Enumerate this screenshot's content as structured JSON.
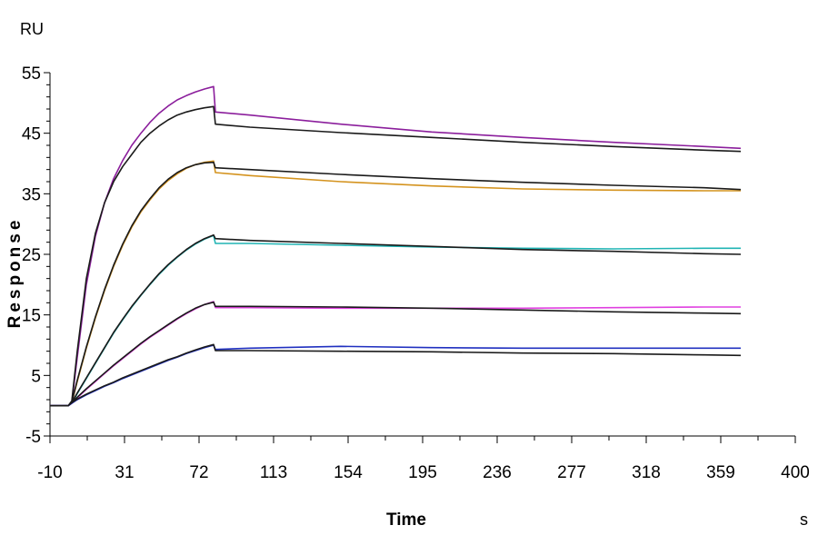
{
  "chart_data": {
    "type": "line",
    "xlabel": "Time",
    "ylabel": "Response",
    "x_unit": "s",
    "y_unit": "RU",
    "xlim": [
      -10,
      400
    ],
    "ylim": [
      -5,
      55
    ],
    "x_ticks": [
      -10,
      31,
      72,
      113,
      154,
      195,
      236,
      277,
      318,
      359,
      400
    ],
    "y_ticks": [
      -5,
      5,
      15,
      25,
      35,
      45,
      55
    ],
    "grid": false,
    "colors": {
      "fit": "#1a1a1a",
      "axis": "#000000"
    },
    "series": [
      {
        "color": "#8B1E9C",
        "points": [
          [
            -10,
            0
          ],
          [
            0,
            0
          ],
          [
            2,
            0.5
          ],
          [
            5,
            8
          ],
          [
            10,
            20
          ],
          [
            15,
            28
          ],
          [
            20,
            33.5
          ],
          [
            25,
            37.5
          ],
          [
            30,
            40.5
          ],
          [
            35,
            43
          ],
          [
            40,
            45
          ],
          [
            45,
            46.8
          ],
          [
            50,
            48.3
          ],
          [
            55,
            49.5
          ],
          [
            60,
            50.5
          ],
          [
            65,
            51.2
          ],
          [
            70,
            51.8
          ],
          [
            75,
            52.3
          ],
          [
            80,
            52.7
          ],
          [
            81,
            48.5
          ],
          [
            100,
            48
          ],
          [
            150,
            46.5
          ],
          [
            200,
            45.2
          ],
          [
            250,
            44.3
          ],
          [
            300,
            43.5
          ],
          [
            350,
            42.8
          ],
          [
            370,
            42.5
          ]
        ]
      },
      {
        "color": "#1a1a1a",
        "points": [
          [
            -10,
            0
          ],
          [
            0,
            0
          ],
          [
            2,
            0.8
          ],
          [
            5,
            9
          ],
          [
            10,
            21
          ],
          [
            15,
            28.5
          ],
          [
            20,
            33.5
          ],
          [
            25,
            37
          ],
          [
            30,
            39.5
          ],
          [
            35,
            41.5
          ],
          [
            40,
            43.5
          ],
          [
            45,
            45
          ],
          [
            50,
            46.2
          ],
          [
            55,
            47.2
          ],
          [
            60,
            48
          ],
          [
            65,
            48.5
          ],
          [
            70,
            48.9
          ],
          [
            75,
            49.2
          ],
          [
            80,
            49.4
          ],
          [
            81,
            46.5
          ],
          [
            100,
            46
          ],
          [
            150,
            45.1
          ],
          [
            200,
            44.3
          ],
          [
            250,
            43.5
          ],
          [
            300,
            42.8
          ],
          [
            350,
            42.2
          ],
          [
            370,
            42
          ]
        ]
      },
      {
        "color": "#D4931E",
        "points": [
          [
            -10,
            0
          ],
          [
            0,
            0
          ],
          [
            2,
            0.5
          ],
          [
            5,
            4
          ],
          [
            10,
            9.5
          ],
          [
            15,
            14.5
          ],
          [
            20,
            19
          ],
          [
            25,
            23
          ],
          [
            30,
            26.5
          ],
          [
            35,
            29.5
          ],
          [
            40,
            32
          ],
          [
            45,
            34
          ],
          [
            50,
            35.8
          ],
          [
            55,
            37.2
          ],
          [
            60,
            38.3
          ],
          [
            65,
            39.2
          ],
          [
            70,
            39.8
          ],
          [
            75,
            40.2
          ],
          [
            80,
            40.4
          ],
          [
            81,
            38.5
          ],
          [
            100,
            38
          ],
          [
            150,
            37
          ],
          [
            200,
            36.3
          ],
          [
            250,
            35.8
          ],
          [
            300,
            35.6
          ],
          [
            350,
            35.5
          ],
          [
            370,
            35.5
          ]
        ]
      },
      {
        "color": "#1a1a1a",
        "points": [
          [
            -10,
            0
          ],
          [
            0,
            0
          ],
          [
            2,
            0.6
          ],
          [
            5,
            4.2
          ],
          [
            10,
            9.7
          ],
          [
            15,
            14.7
          ],
          [
            20,
            19.2
          ],
          [
            25,
            23.2
          ],
          [
            30,
            26.7
          ],
          [
            35,
            29.7
          ],
          [
            40,
            32.2
          ],
          [
            45,
            34.2
          ],
          [
            50,
            36
          ],
          [
            55,
            37.4
          ],
          [
            60,
            38.5
          ],
          [
            65,
            39.3
          ],
          [
            70,
            39.8
          ],
          [
            75,
            40.1
          ],
          [
            80,
            40.2
          ],
          [
            81,
            39.3
          ],
          [
            100,
            39
          ],
          [
            150,
            38.2
          ],
          [
            200,
            37.5
          ],
          [
            250,
            36.9
          ],
          [
            300,
            36.4
          ],
          [
            350,
            36
          ],
          [
            370,
            35.7
          ]
        ]
      },
      {
        "color": "#20B4B4",
        "points": [
          [
            -10,
            0
          ],
          [
            0,
            0
          ],
          [
            2,
            0.4
          ],
          [
            5,
            2
          ],
          [
            10,
            4.5
          ],
          [
            15,
            7
          ],
          [
            20,
            9.5
          ],
          [
            25,
            12
          ],
          [
            30,
            14.2
          ],
          [
            35,
            16.3
          ],
          [
            40,
            18.2
          ],
          [
            45,
            20
          ],
          [
            50,
            21.7
          ],
          [
            55,
            23.2
          ],
          [
            60,
            24.5
          ],
          [
            65,
            25.7
          ],
          [
            70,
            26.7
          ],
          [
            75,
            27.5
          ],
          [
            80,
            28.1
          ],
          [
            81,
            26.8
          ],
          [
            100,
            26.8
          ],
          [
            150,
            26.5
          ],
          [
            200,
            26.2
          ],
          [
            250,
            26
          ],
          [
            300,
            25.9
          ],
          [
            350,
            26
          ],
          [
            370,
            26
          ]
        ]
      },
      {
        "color": "#1a1a1a",
        "points": [
          [
            -10,
            0
          ],
          [
            0,
            0
          ],
          [
            2,
            0.5
          ],
          [
            5,
            2.1
          ],
          [
            10,
            4.6
          ],
          [
            15,
            7.1
          ],
          [
            20,
            9.6
          ],
          [
            25,
            12.1
          ],
          [
            30,
            14.3
          ],
          [
            35,
            16.4
          ],
          [
            40,
            18.3
          ],
          [
            45,
            20.1
          ],
          [
            50,
            21.8
          ],
          [
            55,
            23.3
          ],
          [
            60,
            24.6
          ],
          [
            65,
            25.8
          ],
          [
            70,
            26.8
          ],
          [
            75,
            27.6
          ],
          [
            80,
            28.2
          ],
          [
            81,
            27.6
          ],
          [
            100,
            27.3
          ],
          [
            150,
            26.8
          ],
          [
            200,
            26.3
          ],
          [
            250,
            25.8
          ],
          [
            300,
            25.5
          ],
          [
            350,
            25.1
          ],
          [
            370,
            25
          ]
        ]
      },
      {
        "color": "#E040E0",
        "points": [
          [
            -10,
            0
          ],
          [
            0,
            0
          ],
          [
            2,
            0.4
          ],
          [
            5,
            1.3
          ],
          [
            10,
            2.7
          ],
          [
            15,
            4
          ],
          [
            20,
            5.3
          ],
          [
            25,
            6.6
          ],
          [
            30,
            7.8
          ],
          [
            35,
            9
          ],
          [
            40,
            10.2
          ],
          [
            45,
            11.3
          ],
          [
            50,
            12.3
          ],
          [
            55,
            13.3
          ],
          [
            60,
            14.3
          ],
          [
            65,
            15.2
          ],
          [
            70,
            16
          ],
          [
            75,
            16.7
          ],
          [
            80,
            17.2
          ],
          [
            81,
            16.2
          ],
          [
            100,
            16.2
          ],
          [
            150,
            16.1
          ],
          [
            200,
            16.1
          ],
          [
            250,
            16.1
          ],
          [
            300,
            16.2
          ],
          [
            350,
            16.3
          ],
          [
            370,
            16.3
          ]
        ]
      },
      {
        "color": "#1a1a1a",
        "points": [
          [
            -10,
            0
          ],
          [
            0,
            0
          ],
          [
            2,
            0.5
          ],
          [
            5,
            1.4
          ],
          [
            10,
            2.8
          ],
          [
            15,
            4.1
          ],
          [
            20,
            5.4
          ],
          [
            25,
            6.7
          ],
          [
            30,
            7.9
          ],
          [
            35,
            9.1
          ],
          [
            40,
            10.3
          ],
          [
            45,
            11.4
          ],
          [
            50,
            12.4
          ],
          [
            55,
            13.4
          ],
          [
            60,
            14.4
          ],
          [
            65,
            15.3
          ],
          [
            70,
            16.1
          ],
          [
            75,
            16.7
          ],
          [
            80,
            17.1
          ],
          [
            81,
            16.4
          ],
          [
            100,
            16.4
          ],
          [
            150,
            16.3
          ],
          [
            200,
            16.1
          ],
          [
            250,
            15.8
          ],
          [
            300,
            15.5
          ],
          [
            350,
            15.3
          ],
          [
            370,
            15.2
          ]
        ]
      },
      {
        "color": "#2030C0",
        "points": [
          [
            -10,
            0
          ],
          [
            0,
            0
          ],
          [
            2,
            0.4
          ],
          [
            5,
            1
          ],
          [
            10,
            1.8
          ],
          [
            15,
            2.5
          ],
          [
            20,
            3.2
          ],
          [
            25,
            3.8
          ],
          [
            30,
            4.5
          ],
          [
            35,
            5.1
          ],
          [
            40,
            5.7
          ],
          [
            45,
            6.3
          ],
          [
            50,
            6.9
          ],
          [
            55,
            7.5
          ],
          [
            60,
            8
          ],
          [
            65,
            8.6
          ],
          [
            70,
            9.1
          ],
          [
            75,
            9.6
          ],
          [
            80,
            10
          ],
          [
            81,
            9.3
          ],
          [
            100,
            9.5
          ],
          [
            150,
            9.8
          ],
          [
            200,
            9.6
          ],
          [
            250,
            9.5
          ],
          [
            300,
            9.5
          ],
          [
            350,
            9.5
          ],
          [
            370,
            9.5
          ]
        ]
      },
      {
        "color": "#1a1a1a",
        "points": [
          [
            -10,
            0
          ],
          [
            0,
            0
          ],
          [
            2,
            0.5
          ],
          [
            5,
            1.1
          ],
          [
            10,
            1.9
          ],
          [
            15,
            2.6
          ],
          [
            20,
            3.3
          ],
          [
            25,
            3.9
          ],
          [
            30,
            4.6
          ],
          [
            35,
            5.2
          ],
          [
            40,
            5.8
          ],
          [
            45,
            6.4
          ],
          [
            50,
            7
          ],
          [
            55,
            7.6
          ],
          [
            60,
            8.1
          ],
          [
            65,
            8.7
          ],
          [
            70,
            9.2
          ],
          [
            75,
            9.7
          ],
          [
            80,
            10.1
          ],
          [
            81,
            9.1
          ],
          [
            100,
            9.1
          ],
          [
            150,
            9
          ],
          [
            200,
            8.9
          ],
          [
            250,
            8.7
          ],
          [
            300,
            8.6
          ],
          [
            350,
            8.4
          ],
          [
            370,
            8.3
          ]
        ]
      }
    ]
  }
}
